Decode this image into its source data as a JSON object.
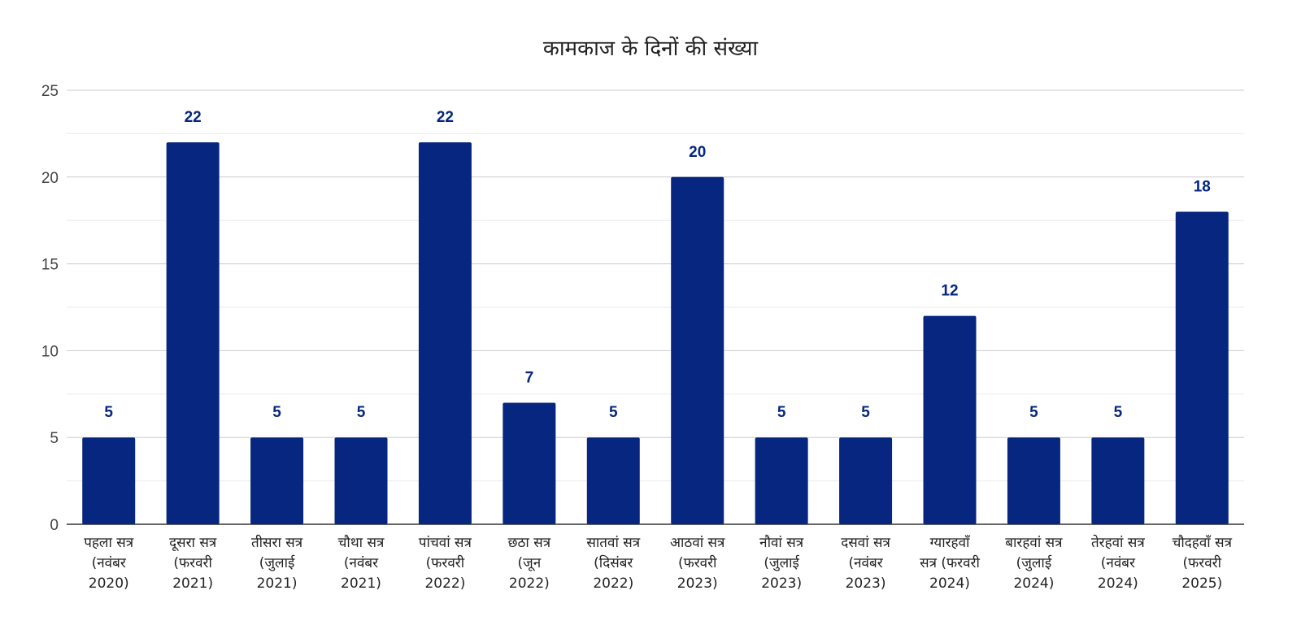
{
  "chart_data": {
    "type": "bar",
    "title": "कामकाज के दिनों की संख्या",
    "xlabel": "",
    "ylabel": "",
    "ylim": [
      0,
      25
    ],
    "yticks": [
      "0",
      "5",
      "10",
      "15",
      "20",
      "25"
    ],
    "categories": [
      [
        "पहला सत्र",
        "(नवंबर",
        "2020)"
      ],
      [
        "दूसरा सत्र",
        "(फरवरी",
        "2021)"
      ],
      [
        "तीसरा सत्र",
        "(जुलाई",
        "2021)"
      ],
      [
        "चौथा सत्र",
        "(नवंबर",
        "2021)"
      ],
      [
        "पांचवां सत्र",
        "(फरवरी",
        "2022)"
      ],
      [
        "छठा सत्र",
        "(जून",
        "2022)"
      ],
      [
        "सातवां सत्र",
        "(दिसंबर",
        "2022)"
      ],
      [
        "आठवां सत्र",
        "(फरवरी",
        "2023)"
      ],
      [
        "नौवां सत्र",
        "(जुलाई",
        "2023)"
      ],
      [
        "दसवां सत्र",
        "(नवंबर",
        "2023)"
      ],
      [
        "ग्यारहवाँ",
        "सत्र (फरवरी",
        "2024)"
      ],
      [
        "बारहवां सत्र",
        "(जुलाई",
        "2024)"
      ],
      [
        "तेरहवां सत्र",
        "(नवंबर",
        "2024)"
      ],
      [
        "चौदहवाँ सत्र",
        "(फरवरी",
        "2025)"
      ]
    ],
    "values": [
      5,
      22,
      5,
      5,
      22,
      7,
      5,
      20,
      5,
      5,
      12,
      5,
      5,
      18
    ],
    "data_labels": [
      "5",
      "22",
      "5",
      "5",
      "22",
      "7",
      "5",
      "20",
      "5",
      "5",
      "12",
      "5",
      "5",
      "18"
    ],
    "grid": true,
    "legend": "none",
    "colors": {
      "bar": "#06267F",
      "label": "#06267F",
      "grid_major": "#CCCCCC",
      "grid_minor": "#EBEBEB",
      "axis": "#333333"
    }
  }
}
